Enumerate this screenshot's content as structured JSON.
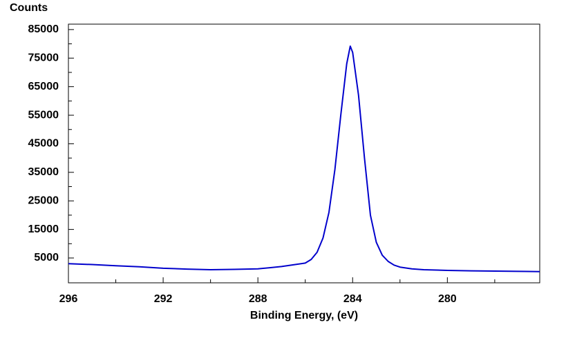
{
  "chart_data": {
    "type": "line",
    "y_label": "Counts",
    "x_label": "Binding Energy, (eV)",
    "x": [
      296,
      295,
      294,
      293,
      292,
      291,
      290,
      289,
      288,
      287.5,
      287,
      286.5,
      286,
      285.75,
      285.5,
      285.25,
      285,
      284.75,
      284.5,
      284.25,
      284.1,
      284,
      283.75,
      283.5,
      283.25,
      283,
      282.75,
      282.5,
      282.25,
      282,
      281.5,
      281,
      280,
      279,
      278,
      277,
      276.1
    ],
    "series": [
      {
        "color": "#0000cc",
        "values": [
          3000,
          2700,
          2300,
          1900,
          1400,
          1100,
          900,
          1000,
          1200,
          1600,
          2000,
          2600,
          3200,
          4500,
          7000,
          12000,
          21000,
          36000,
          55000,
          73000,
          79200,
          77000,
          62000,
          40000,
          20000,
          10500,
          6000,
          3800,
          2500,
          1800,
          1200,
          900,
          650,
          500,
          400,
          300,
          250
        ]
      }
    ],
    "xlim": [
      296,
      276.1
    ],
    "ylim": [
      -3700,
      86900
    ],
    "xticks": [
      296,
      292,
      288,
      284,
      280
    ],
    "xminor": [
      294,
      290,
      286,
      282,
      278
    ],
    "yticks": [
      5000,
      15000,
      25000,
      35000,
      45000,
      55000,
      65000,
      75000,
      85000
    ],
    "yminor": [
      10000,
      20000,
      30000,
      40000,
      50000,
      60000,
      70000,
      80000
    ]
  }
}
